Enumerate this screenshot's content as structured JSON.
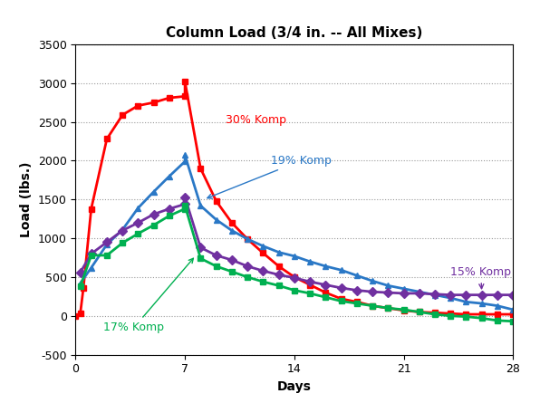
{
  "chart_data": {
    "type": "line",
    "title": "Column Load (3/4 in. -- All Mixes)",
    "x_label": "Days",
    "y_label": "Load (lbs.)",
    "xlim": [
      0,
      28
    ],
    "xticks": [
      0,
      7,
      14,
      21,
      28
    ],
    "ylim": [
      -500,
      3500
    ],
    "yticks": [
      -500,
      0,
      500,
      1000,
      1500,
      2000,
      2500,
      3000,
      3500
    ],
    "grid": true,
    "series": [
      {
        "name": "30% Komp",
        "color": "#ff0000",
        "marker": "square",
        "x": [
          0,
          0.3,
          0.5,
          1,
          2,
          3,
          4,
          5,
          6,
          7,
          7,
          8,
          9,
          10,
          11,
          12,
          13,
          14,
          15,
          16,
          17,
          18,
          19,
          20,
          21,
          22,
          23,
          24,
          25,
          26,
          27,
          28
        ],
        "values": [
          0,
          30,
          360,
          1380,
          2280,
          2590,
          2710,
          2750,
          2810,
          2830,
          3020,
          1900,
          1480,
          1200,
          990,
          810,
          640,
          500,
          400,
          300,
          220,
          180,
          130,
          100,
          70,
          50,
          40,
          30,
          20,
          20,
          20,
          20
        ]
      },
      {
        "name": "19% Komp",
        "color": "#2a78c6",
        "marker": "triangle",
        "x": [
          0.3,
          1,
          2,
          3,
          4,
          5,
          6,
          7,
          7,
          8,
          9,
          10,
          11,
          12,
          13,
          14,
          15,
          16,
          17,
          18,
          19,
          20,
          21,
          22,
          23,
          24,
          25,
          26,
          27,
          28
        ],
        "values": [
          420,
          620,
          920,
          1110,
          1390,
          1600,
          1800,
          1990,
          2070,
          1420,
          1240,
          1100,
          990,
          900,
          820,
          770,
          700,
          640,
          590,
          520,
          450,
          390,
          350,
          310,
          270,
          230,
          180,
          160,
          130,
          80
        ]
      },
      {
        "name": "15% Komp",
        "color": "#7030a0",
        "marker": "diamond",
        "x": [
          0.3,
          1,
          2,
          3,
          4,
          5,
          6,
          7,
          7,
          8,
          9,
          10,
          11,
          12,
          13,
          14,
          15,
          16,
          17,
          18,
          19,
          20,
          21,
          22,
          23,
          24,
          25,
          26,
          27,
          28
        ],
        "values": [
          560,
          800,
          950,
          1100,
          1200,
          1310,
          1380,
          1440,
          1530,
          880,
          780,
          720,
          640,
          580,
          530,
          490,
          440,
          400,
          360,
          330,
          310,
          300,
          290,
          290,
          280,
          270,
          270,
          270,
          270,
          270
        ]
      },
      {
        "name": "17% Komp",
        "color": "#00b050",
        "marker": "square",
        "x": [
          0.3,
          1,
          2,
          3,
          4,
          5,
          6,
          7,
          7,
          8,
          9,
          10,
          11,
          12,
          13,
          14,
          15,
          16,
          17,
          18,
          19,
          20,
          21,
          22,
          23,
          24,
          25,
          26,
          27,
          28
        ],
        "values": [
          380,
          780,
          780,
          940,
          1060,
          1170,
          1290,
          1380,
          1420,
          740,
          640,
          570,
          500,
          440,
          390,
          330,
          290,
          240,
          190,
          160,
          130,
          100,
          80,
          50,
          20,
          0,
          -10,
          -30,
          -60,
          -70
        ]
      }
    ]
  }
}
